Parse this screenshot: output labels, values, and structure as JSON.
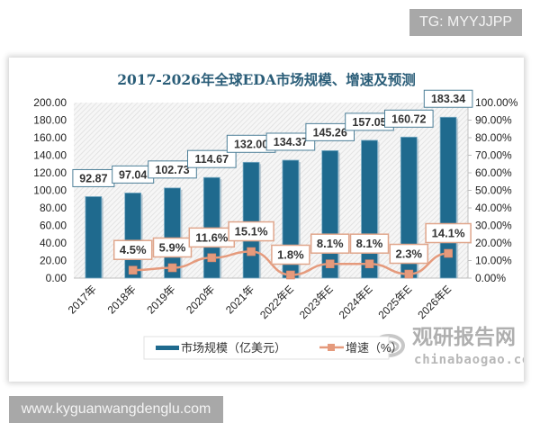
{
  "badges": {
    "tg": "TG: MYYJJPP",
    "url": "www.kyguanwangdenglu.com"
  },
  "watermark": {
    "cn": "观研报告网",
    "en": "chinabaogao.com"
  },
  "colors": {
    "bar": "#1f6a8e",
    "line": "#e59a7c",
    "title": "#2a5d78",
    "label_border_bar": "#4d7f98",
    "label_border_line": "#e0a68c"
  },
  "chart_data": {
    "type": "bar+line",
    "title": "2017-2026年全球EDA市场规模、增速及预测",
    "categories": [
      "2017年",
      "2018年",
      "2019年",
      "2020年",
      "2021年",
      "2022年E",
      "2023年E",
      "2024年E",
      "2025年E",
      "2026年E"
    ],
    "series": [
      {
        "name": "市场规模（亿美元）",
        "type": "bar",
        "axis": "left",
        "values": [
          92.87,
          97.04,
          102.73,
          114.67,
          132.0,
          134.37,
          145.26,
          157.05,
          160.72,
          183.34
        ],
        "labels": [
          "92.87",
          "97.04",
          "102.73",
          "114.67",
          "132.00",
          "134.37",
          "145.26",
          "157.05",
          "160.72",
          "183.34"
        ]
      },
      {
        "name": "增速（%）",
        "type": "line",
        "axis": "right",
        "values": [
          null,
          4.5,
          5.9,
          11.6,
          15.1,
          1.8,
          8.1,
          8.1,
          2.3,
          14.1
        ],
        "labels": [
          "",
          "4.5%",
          "5.9%",
          "11.6%",
          "15.1%",
          "1.8%",
          "8.1%",
          "8.1%",
          "2.3%",
          "14.1%"
        ]
      }
    ],
    "left_axis": {
      "ticks": [
        "0.00",
        "20.00",
        "40.00",
        "60.00",
        "80.00",
        "100.00",
        "120.00",
        "140.00",
        "160.00",
        "180.00",
        "200.00"
      ],
      "ylim": [
        0,
        200
      ]
    },
    "right_axis": {
      "ticks": [
        "0.00%",
        "10.00%",
        "20.00%",
        "30.00%",
        "40.00%",
        "50.00%",
        "60.00%",
        "70.00%",
        "80.00%",
        "90.00%",
        "100.00%"
      ],
      "ylim": [
        0,
        100
      ]
    },
    "legend": {
      "position": "bottom",
      "items": [
        "市场规模（亿美元）",
        "增速（%）"
      ]
    },
    "grid": false
  }
}
